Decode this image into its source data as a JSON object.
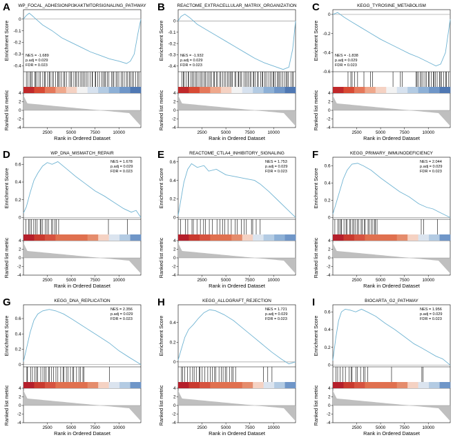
{
  "chart_data": [
    {
      "label": "A",
      "title": "WP_FOCAL_ADHESIONPI3KAKTMTORSIGNALING_PATHWAY",
      "type": "line",
      "direction": "neg",
      "ylabel": "Enrichment Score",
      "ylabel2": "Ranked list metric",
      "xlabel": "Rank in Ordered Dataset",
      "ylim": [
        -0.45,
        0.08
      ],
      "yticks": [
        0,
        -0.1,
        -0.2,
        -0.3,
        -0.4
      ],
      "xlim": [
        0,
        12300
      ],
      "xticks": [
        2500,
        5000,
        7500,
        10000
      ],
      "rlim": [
        -4,
        4
      ],
      "rticks": [
        4,
        2,
        0,
        -2,
        -4
      ],
      "es_curve": [
        [
          0,
          0
        ],
        [
          300,
          0.03
        ],
        [
          600,
          0.05
        ],
        [
          900,
          0.03
        ],
        [
          1300,
          0.0
        ],
        [
          2000,
          -0.05
        ],
        [
          3000,
          -0.1
        ],
        [
          4000,
          -0.16
        ],
        [
          5000,
          -0.2
        ],
        [
          6000,
          -0.24
        ],
        [
          7000,
          -0.28
        ],
        [
          8000,
          -0.31
        ],
        [
          9000,
          -0.34
        ],
        [
          10000,
          -0.36
        ],
        [
          10800,
          -0.38
        ],
        [
          11200,
          -0.36
        ],
        [
          11600,
          -0.3
        ],
        [
          12000,
          -0.12
        ],
        [
          12300,
          0.0
        ]
      ],
      "hit_ranges": [
        [
          200,
          12200,
          70
        ]
      ],
      "heat": [
        "#c0282a",
        "#d84a34",
        "#e5785a",
        "#efa88c",
        "#f5d2c3",
        "#f3f3f3",
        "#d7e2ef",
        "#b3cbe3",
        "#8db0d6",
        "#6f96c8",
        "#4f78b3"
      ],
      "stats": {
        "nes": "NES = -1.689",
        "padj": "p.adj = 0.029",
        "fdr": "FDR = 0.023"
      },
      "stats_pos": "bottom-left"
    },
    {
      "label": "B",
      "title": "REACTOME_EXTRACELLULAR_MATRIX_ORGANIZATION",
      "type": "line",
      "direction": "neg",
      "ylabel": "Enrichment Score",
      "ylabel2": "Ranked list metric",
      "xlabel": "Rank in Ordered Dataset",
      "ylim": [
        -0.45,
        0.1
      ],
      "yticks": [
        0,
        -0.1,
        -0.2,
        -0.3,
        -0.4
      ],
      "xlim": [
        0,
        12300
      ],
      "xticks": [
        2500,
        5000,
        7500,
        10000
      ],
      "rlim": [
        -4,
        4
      ],
      "rticks": [
        4,
        2,
        0,
        -2,
        -4
      ],
      "es_curve": [
        [
          0,
          0
        ],
        [
          300,
          0.04
        ],
        [
          700,
          0.06
        ],
        [
          1200,
          0.03
        ],
        [
          2000,
          -0.03
        ],
        [
          3000,
          -0.08
        ],
        [
          4000,
          -0.13
        ],
        [
          5000,
          -0.18
        ],
        [
          6000,
          -0.23
        ],
        [
          7000,
          -0.28
        ],
        [
          8000,
          -0.33
        ],
        [
          9000,
          -0.37
        ],
        [
          10000,
          -0.4
        ],
        [
          11000,
          -0.43
        ],
        [
          11600,
          -0.41
        ],
        [
          12000,
          -0.25
        ],
        [
          12300,
          0.0
        ]
      ],
      "hit_ranges": [
        [
          300,
          12200,
          75
        ]
      ],
      "heat": [
        "#c0282a",
        "#d84a34",
        "#e5785a",
        "#efa88c",
        "#f5d2c3",
        "#f3f3f3",
        "#d7e2ef",
        "#b3cbe3",
        "#8db0d6",
        "#6f96c8",
        "#4f78b3"
      ],
      "stats": {
        "nes": "NES = -1.932",
        "padj": "p.adj = 0.029",
        "fdr": "FDR = 0.023"
      },
      "stats_pos": "bottom-left"
    },
    {
      "label": "C",
      "title": "KEGG_TYROSINE_METABOLISM",
      "type": "line",
      "direction": "neg",
      "ylabel": "Enrichment Score",
      "ylabel2": "Ranked list metric",
      "xlabel": "Rank in Ordered Dataset",
      "ylim": [
        -0.6,
        0.05
      ],
      "yticks": [
        0,
        -0.2,
        -0.4,
        -0.6
      ],
      "xlim": [
        0,
        12300
      ],
      "xticks": [
        2500,
        5000,
        7500,
        10000
      ],
      "rlim": [
        -4,
        4
      ],
      "rticks": [
        4,
        2,
        0,
        -2,
        -4
      ],
      "es_curve": [
        [
          0,
          0
        ],
        [
          500,
          0.02
        ],
        [
          1200,
          -0.03
        ],
        [
          2000,
          -0.08
        ],
        [
          3000,
          -0.14
        ],
        [
          4000,
          -0.2
        ],
        [
          5000,
          -0.26
        ],
        [
          6000,
          -0.31
        ],
        [
          7000,
          -0.36
        ],
        [
          8000,
          -0.41
        ],
        [
          9000,
          -0.45
        ],
        [
          10000,
          -0.5
        ],
        [
          10800,
          -0.54
        ],
        [
          11300,
          -0.52
        ],
        [
          11800,
          -0.4
        ],
        [
          12300,
          -0.05
        ]
      ],
      "hit_ranges": [
        [
          1500,
          2700,
          5
        ],
        [
          3200,
          4500,
          3
        ],
        [
          6200,
          7800,
          3
        ],
        [
          8600,
          12200,
          22
        ]
      ],
      "heat": [
        "#c0282a",
        "#d84a34",
        "#e5785a",
        "#efa88c",
        "#f5d2c3",
        "#f3f3f3",
        "#d7e2ef",
        "#b3cbe3",
        "#8db0d6",
        "#6f96c8",
        "#4f78b3"
      ],
      "stats": {
        "nes": "NES = -1.838",
        "padj": "p.adj = 0.029",
        "fdr": "FDR = 0.023"
      },
      "stats_pos": "bottom-left"
    },
    {
      "label": "D",
      "title": "WP_DNA_MISMATCH_REPAIR",
      "type": "line",
      "direction": "pos",
      "ylabel": "Enrichment Score",
      "ylabel2": "Ranked list metric",
      "xlabel": "Rank in Ordered Dataset",
      "ylim": [
        -0.02,
        0.68
      ],
      "yticks": [
        0.0,
        0.2,
        0.4,
        0.6
      ],
      "xlim": [
        0,
        12300
      ],
      "xticks": [
        2500,
        5000,
        7500,
        10000
      ],
      "rlim": [
        -4,
        4
      ],
      "rticks": [
        4,
        2,
        0,
        -2,
        -4
      ],
      "es_curve": [
        [
          0,
          0.05
        ],
        [
          300,
          0.12
        ],
        [
          700,
          0.28
        ],
        [
          1100,
          0.42
        ],
        [
          1500,
          0.5
        ],
        [
          2000,
          0.58
        ],
        [
          2500,
          0.62
        ],
        [
          3000,
          0.6
        ],
        [
          3600,
          0.63
        ],
        [
          4500,
          0.55
        ],
        [
          5500,
          0.46
        ],
        [
          6500,
          0.38
        ],
        [
          7500,
          0.3
        ],
        [
          8500,
          0.24
        ],
        [
          9500,
          0.17
        ],
        [
          10500,
          0.1
        ],
        [
          11300,
          0.06
        ],
        [
          11800,
          0.08
        ],
        [
          12300,
          0.0
        ]
      ],
      "hit_ranges": [
        [
          200,
          3800,
          18
        ],
        [
          8800,
          9000,
          1
        ],
        [
          10800,
          11000,
          1
        ]
      ],
      "heat": [
        "#b51f2b",
        "#c93a2f",
        "#d65340",
        "#e0704f",
        "#e0704f",
        "#e0704f",
        "#e58c6c",
        "#f5d2c3",
        "#dbe4ef",
        "#b3cbe3",
        "#6f96c8"
      ],
      "stats": {
        "nes": "NES = 1.678",
        "padj": "p.adj = 0.029",
        "fdr": "FDR = 0.023"
      },
      "stats_pos": "top-right"
    },
    {
      "label": "E",
      "title": "REACTOME_CTLA4_INHIBITORY_SIGNALING",
      "type": "line",
      "direction": "pos",
      "ylabel": "Enrichment Score",
      "ylabel2": "Ranked list metric",
      "xlabel": "Rank in Ordered Dataset",
      "ylim": [
        -0.02,
        0.65
      ],
      "yticks": [
        0.0,
        0.2,
        0.4,
        0.6
      ],
      "xlim": [
        0,
        12300
      ],
      "xticks": [
        2500,
        5000,
        7500,
        10000
      ],
      "rlim": [
        -4,
        4
      ],
      "rticks": [
        4,
        2,
        0,
        -2,
        -4
      ],
      "es_curve": [
        [
          0,
          0.02
        ],
        [
          300,
          0.2
        ],
        [
          600,
          0.38
        ],
        [
          1000,
          0.52
        ],
        [
          1400,
          0.58
        ],
        [
          2000,
          0.54
        ],
        [
          2700,
          0.56
        ],
        [
          3200,
          0.5
        ],
        [
          4000,
          0.52
        ],
        [
          5000,
          0.46
        ],
        [
          6000,
          0.44
        ],
        [
          7000,
          0.42
        ],
        [
          8000,
          0.4
        ],
        [
          8600,
          0.36
        ],
        [
          9500,
          0.28
        ],
        [
          10500,
          0.18
        ],
        [
          11500,
          0.08
        ],
        [
          12300,
          0.0
        ]
      ],
      "hit_ranges": [
        [
          200,
          8800,
          26
        ]
      ],
      "heat": [
        "#b51f2b",
        "#c93a2f",
        "#d65340",
        "#e0704f",
        "#e0704f",
        "#e58c6c",
        "#f5d2c3",
        "#dbe4ef",
        "#b3cbe3",
        "#8db0d6",
        "#6f96c8"
      ],
      "stats": {
        "nes": "NES = 1.753",
        "padj": "p.adj = 0.029",
        "fdr": "FDR = 0.023"
      },
      "stats_pos": "top-right"
    },
    {
      "label": "F",
      "title": "KEGG_PRIMARY_IMMUNODEFICIENCY",
      "type": "line",
      "direction": "pos",
      "ylabel": "Enrichment Score",
      "ylabel2": "Ranked list metric",
      "xlabel": "Rank in Ordered Dataset",
      "ylim": [
        -0.02,
        0.7
      ],
      "yticks": [
        0.0,
        0.2,
        0.4,
        0.6
      ],
      "xlim": [
        0,
        12300
      ],
      "xticks": [
        2500,
        5000,
        7500,
        10000
      ],
      "rlim": [
        -4,
        4
      ],
      "rticks": [
        4,
        2,
        0,
        -2,
        -4
      ],
      "es_curve": [
        [
          0,
          0.04
        ],
        [
          300,
          0.15
        ],
        [
          700,
          0.3
        ],
        [
          1100,
          0.45
        ],
        [
          1500,
          0.55
        ],
        [
          2000,
          0.62
        ],
        [
          2600,
          0.63
        ],
        [
          3200,
          0.6
        ],
        [
          4000,
          0.55
        ],
        [
          5000,
          0.46
        ],
        [
          6000,
          0.38
        ],
        [
          7000,
          0.3
        ],
        [
          8000,
          0.24
        ],
        [
          9000,
          0.16
        ],
        [
          9800,
          0.12
        ],
        [
          10500,
          0.1
        ],
        [
          11200,
          0.06
        ],
        [
          12300,
          0.0
        ]
      ],
      "hit_ranges": [
        [
          200,
          4800,
          26
        ],
        [
          9200,
          9600,
          2
        ],
        [
          10800,
          11100,
          1
        ]
      ],
      "heat": [
        "#b51f2b",
        "#c93a2f",
        "#d65340",
        "#e0704f",
        "#e0704f",
        "#e0704f",
        "#e58c6c",
        "#f5d2c3",
        "#dbe4ef",
        "#b3cbe3",
        "#6f96c8"
      ],
      "stats": {
        "nes": "NES = 2.044",
        "padj": "p.adj = 0.029",
        "fdr": "FDR = 0.023"
      },
      "stats_pos": "top-right"
    },
    {
      "label": "G",
      "title": "KEGG_DNA_REPLICATION",
      "type": "line",
      "direction": "pos",
      "ylabel": "Enrichment Score",
      "ylabel2": "Ranked list metric",
      "xlabel": "Rank in Ordered Dataset",
      "ylim": [
        -0.03,
        0.78
      ],
      "yticks": [
        0.0,
        0.2,
        0.4,
        0.6
      ],
      "xlim": [
        0,
        12300
      ],
      "xticks": [
        2500,
        5000,
        7500,
        10000
      ],
      "rlim": [
        -4,
        4
      ],
      "rticks": [
        4,
        2,
        0,
        -2,
        -4
      ],
      "es_curve": [
        [
          0,
          0.04
        ],
        [
          300,
          0.2
        ],
        [
          700,
          0.42
        ],
        [
          1100,
          0.58
        ],
        [
          1500,
          0.66
        ],
        [
          2000,
          0.7
        ],
        [
          2700,
          0.72
        ],
        [
          3400,
          0.7
        ],
        [
          4200,
          0.66
        ],
        [
          5000,
          0.6
        ],
        [
          6000,
          0.52
        ],
        [
          7000,
          0.44
        ],
        [
          8000,
          0.36
        ],
        [
          9000,
          0.28
        ],
        [
          10000,
          0.18
        ],
        [
          11000,
          0.1
        ],
        [
          12300,
          0.0
        ]
      ],
      "hit_ranges": [
        [
          200,
          6500,
          30
        ],
        [
          8900,
          9100,
          1
        ]
      ],
      "heat": [
        "#b51f2b",
        "#c93a2f",
        "#d65340",
        "#e0704f",
        "#e0704f",
        "#e0704f",
        "#e58c6c",
        "#f5d2c3",
        "#dbe4ef",
        "#b3cbe3",
        "#6f96c8"
      ],
      "stats": {
        "nes": "NES = 2.356",
        "padj": "p.adj = 0.029",
        "fdr": "FDR = 0.023"
      },
      "stats_pos": "top-right"
    },
    {
      "label": "H",
      "title": "KEGG_ALLOGRAFT_REJECTION",
      "type": "line",
      "direction": "pos",
      "ylabel": "Enrichment Score",
      "ylabel2": "Ranked list metric",
      "xlabel": "Rank in Ordered Dataset",
      "ylim": [
        -0.05,
        0.58
      ],
      "yticks": [
        0.0,
        0.2,
        0.4
      ],
      "xlim": [
        0,
        12300
      ],
      "xticks": [
        2500,
        5000,
        7500,
        10000
      ],
      "rlim": [
        -4,
        4
      ],
      "rticks": [
        4,
        2,
        0,
        -2,
        -4
      ],
      "es_curve": [
        [
          0,
          0.02
        ],
        [
          300,
          0.12
        ],
        [
          700,
          0.25
        ],
        [
          1100,
          0.33
        ],
        [
          1600,
          0.38
        ],
        [
          2100,
          0.44
        ],
        [
          2700,
          0.5
        ],
        [
          3300,
          0.53
        ],
        [
          3900,
          0.52
        ],
        [
          4800,
          0.48
        ],
        [
          5800,
          0.42
        ],
        [
          6800,
          0.34
        ],
        [
          7800,
          0.26
        ],
        [
          8800,
          0.18
        ],
        [
          9800,
          0.1
        ],
        [
          10800,
          0.03
        ],
        [
          11600,
          -0.02
        ],
        [
          12300,
          0.0
        ]
      ],
      "hit_ranges": [
        [
          200,
          6200,
          26
        ],
        [
          8800,
          10200,
          3
        ]
      ],
      "heat": [
        "#b51f2b",
        "#c93a2f",
        "#d65340",
        "#e0704f",
        "#e0704f",
        "#e0704f",
        "#e58c6c",
        "#f5d2c3",
        "#dbe4ef",
        "#b3cbe3",
        "#6f96c8"
      ],
      "stats": {
        "nes": "NES = 1.721",
        "padj": "p.adj = 0.029",
        "fdr": "FDR = 0.023"
      },
      "stats_pos": "top-right"
    },
    {
      "label": "I",
      "title": "BIOCARTA_G2_PATHWAY",
      "type": "line",
      "direction": "pos",
      "ylabel": "Enrichment Score",
      "ylabel2": "Ranked list metric",
      "xlabel": "Rank in Ordered Dataset",
      "ylim": [
        -0.02,
        0.68
      ],
      "yticks": [
        0.0,
        0.2,
        0.4,
        0.6
      ],
      "xlim": [
        0,
        12300
      ],
      "xticks": [
        2500,
        5000,
        7500,
        10000
      ],
      "rlim": [
        -4,
        4
      ],
      "rticks": [
        4,
        2,
        0,
        -2,
        -4
      ],
      "es_curve": [
        [
          0,
          0.05
        ],
        [
          300,
          0.3
        ],
        [
          600,
          0.5
        ],
        [
          900,
          0.6
        ],
        [
          1300,
          0.63
        ],
        [
          1800,
          0.62
        ],
        [
          2400,
          0.6
        ],
        [
          3000,
          0.63
        ],
        [
          3600,
          0.6
        ],
        [
          4500,
          0.55
        ],
        [
          5500,
          0.47
        ],
        [
          6500,
          0.4
        ],
        [
          7500,
          0.32
        ],
        [
          8500,
          0.24
        ],
        [
          9200,
          0.2
        ],
        [
          10000,
          0.15
        ],
        [
          10800,
          0.1
        ],
        [
          11500,
          0.07
        ],
        [
          12300,
          0.0
        ]
      ],
      "hit_ranges": [
        [
          200,
          3800,
          14
        ],
        [
          6000,
          6300,
          1
        ],
        [
          9200,
          9600,
          2
        ]
      ],
      "heat": [
        "#b51f2b",
        "#c93a2f",
        "#d65340",
        "#e0704f",
        "#e0704f",
        "#e0704f",
        "#e58c6c",
        "#f5d2c3",
        "#dbe4ef",
        "#b3cbe3",
        "#6f96c8"
      ],
      "stats": {
        "nes": "NES = 1.956",
        "padj": "p.adj = 0.029",
        "fdr": "FDR = 0.023"
      },
      "stats_pos": "top-right"
    }
  ],
  "colors": {
    "curve": "#6fb3d2",
    "axis": "#000000",
    "zero_line": "#999999",
    "metric_fill": "#bfbfbf"
  }
}
